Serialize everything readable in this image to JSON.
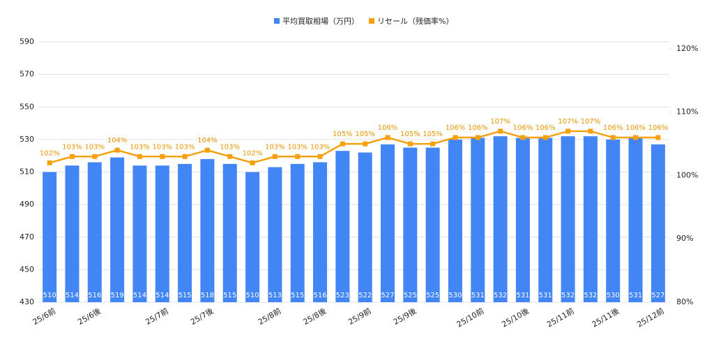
{
  "chart_data": {
    "type": "combo",
    "categories": [
      "25/6前",
      null,
      "25/6後",
      null,
      null,
      "25/7前",
      null,
      "25/7後",
      null,
      null,
      "25/8前",
      null,
      "25/8後",
      null,
      "25/9前",
      null,
      "25/9後",
      null,
      null,
      "25/10前",
      null,
      "25/10後",
      null,
      "25/11前",
      null,
      "25/11後",
      null,
      "25/12前"
    ],
    "series": [
      {
        "name": "平均買取相場（万円）",
        "type": "bar",
        "color": "#4285f4",
        "values": [
          510,
          514,
          516,
          519,
          514,
          514,
          515,
          518,
          515,
          510,
          513,
          515,
          516,
          523,
          522,
          527,
          525,
          525,
          530,
          531,
          532,
          531,
          531,
          532,
          532,
          530,
          531,
          527
        ]
      },
      {
        "name": "リセール（残価率%）",
        "type": "line",
        "axis": "y2",
        "color": "#f5a10f",
        "values": [
          102,
          103,
          103,
          104,
          103,
          103,
          103,
          104,
          103,
          102,
          103,
          103,
          103,
          105,
          105,
          106,
          105,
          105,
          106,
          106,
          107,
          106,
          106,
          107,
          107,
          106,
          106,
          106
        ],
        "value_labels": [
          "102%",
          "103%",
          "103%",
          "104%",
          "103%",
          "103%",
          "103%",
          "104%",
          "103%",
          "102%",
          "103%",
          "103%",
          "103%",
          "105%",
          "105%",
          "106%",
          "105%",
          "105%",
          "106%",
          "106%",
          "107%",
          "106%",
          "106%",
          "107%",
          "107%",
          "106%",
          "106%",
          "106%"
        ]
      }
    ],
    "ylim": [
      430,
      590
    ],
    "yticks": [
      430,
      450,
      470,
      490,
      510,
      530,
      550,
      570,
      590
    ],
    "y2lim": [
      80,
      121.1
    ],
    "y2ticks": [
      {
        "value": 80,
        "label": "80%"
      },
      {
        "value": 90,
        "label": "90%"
      },
      {
        "value": 100,
        "label": "100%"
      },
      {
        "value": 110,
        "label": "110%"
      },
      {
        "value": 120,
        "label": "120%"
      }
    ],
    "grid": true
  }
}
